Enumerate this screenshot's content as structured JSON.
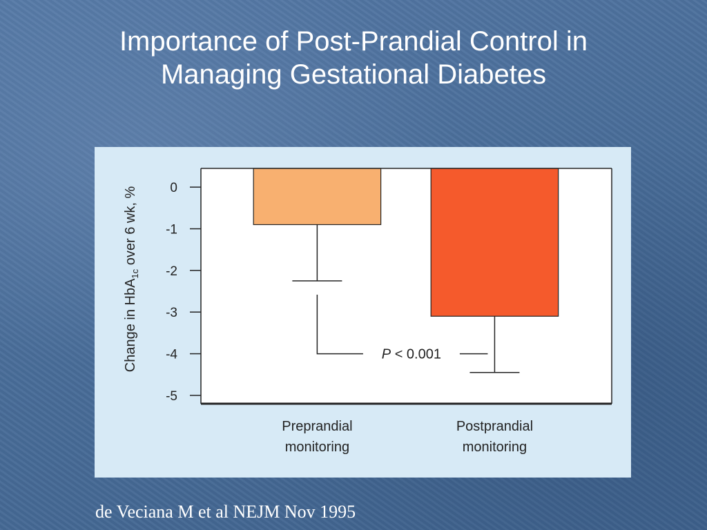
{
  "slide": {
    "title_line1": "Importance of Post-Prandial Control in",
    "title_line2": "Managing Gestational Diabetes",
    "citation": "de Veciana M et al NEJM Nov 1995"
  },
  "chart_data": {
    "type": "bar",
    "categories": [
      "Preprandial monitoring",
      "Postprandial monitoring"
    ],
    "category_lines": [
      [
        "Preprandial",
        "monitoring"
      ],
      [
        "Postprandial",
        "monitoring"
      ]
    ],
    "values": [
      -0.9,
      -3.1
    ],
    "error_lower": [
      -2.25,
      -4.45
    ],
    "colors": [
      "#f8b070",
      "#f55a2c"
    ],
    "ylabel_main": "Change in HbA",
    "ylabel_subscript": "1c",
    "ylabel_tail": " over 6 wk, %",
    "yticks": [
      0,
      -1,
      -2,
      -3,
      -4,
      -5
    ],
    "ylim": [
      -5.2,
      0.45
    ],
    "annotation": "P < 0.001",
    "annotation_italic": "P",
    "annotation_rest": " < 0.001",
    "grid": false
  }
}
